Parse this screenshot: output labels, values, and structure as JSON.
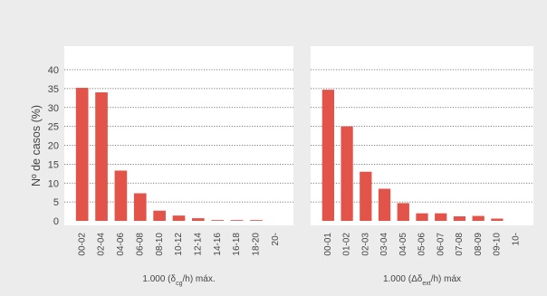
{
  "figure": {
    "ylabel": "Nº de casos (%)",
    "colors": {
      "background": "#ececec",
      "panel": "#ffffff",
      "bar": "#e2544a",
      "grid": "#555555",
      "text": "#444444"
    }
  },
  "chart_data": [
    {
      "type": "bar",
      "categories": [
        "00-02",
        "02-04",
        "04-06",
        "06-08",
        "08-10",
        "10-12",
        "12-14",
        "14-16",
        "16-18",
        "18-20",
        "20-"
      ],
      "values": [
        35.2,
        34.0,
        13.3,
        7.3,
        2.7,
        1.4,
        0.7,
        0.2,
        0.2,
        0.2,
        0
      ],
      "xlabel_main": "1.000 (δ",
      "xlabel_sub": "cg",
      "xlabel_end": "/h) máx.",
      "ylabel": "Nº de casos (%)",
      "yticks": [
        0,
        5,
        10,
        15,
        20,
        25,
        30,
        35,
        40
      ],
      "ylim": [
        0,
        40
      ],
      "grid": true
    },
    {
      "type": "bar",
      "categories": [
        "00-01",
        "01-02",
        "02-03",
        "03-04",
        "04-05",
        "05-06",
        "06-07",
        "07-08",
        "08-09",
        "09-10",
        "10-"
      ],
      "values": [
        34.7,
        25.0,
        13.0,
        8.5,
        4.7,
        2.0,
        2.0,
        1.2,
        1.3,
        0.6,
        0
      ],
      "xlabel_main": "1.000 (Δδ",
      "xlabel_sub": "ext",
      "xlabel_end": "/h) máx",
      "ylim": [
        0,
        40
      ],
      "grid": true
    }
  ]
}
